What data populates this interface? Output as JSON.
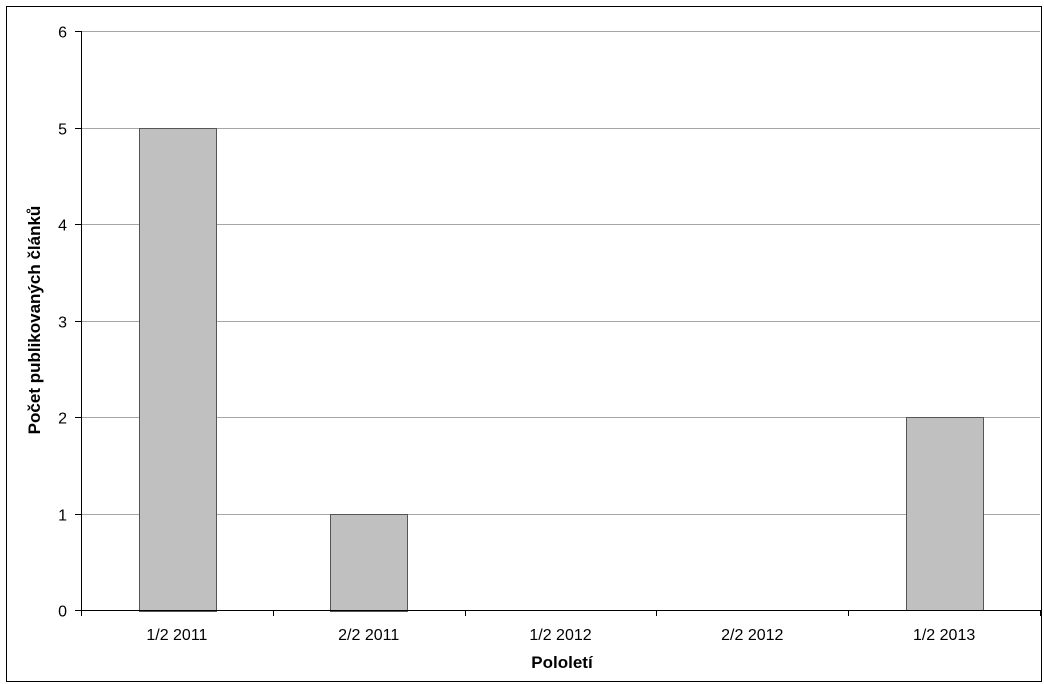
{
  "chart_data": {
    "type": "bar",
    "categories": [
      "1/2 2011",
      "2/2 2011",
      "1/2 2012",
      "2/2 2012",
      "1/2 2013"
    ],
    "values": [
      5,
      1,
      0,
      0,
      2
    ],
    "title": "",
    "xlabel": "Pololetí",
    "ylabel": "Počet publikovaných článků",
    "ylim": [
      0,
      6
    ],
    "yticks": [
      0,
      1,
      2,
      3,
      4,
      5,
      6
    ],
    "grid": true,
    "legend": "none",
    "colors": {
      "bar_fill": "#c0c0c0",
      "bar_stroke": "#555555",
      "gridline": "#a6a6a6",
      "axis": "#000000"
    }
  }
}
